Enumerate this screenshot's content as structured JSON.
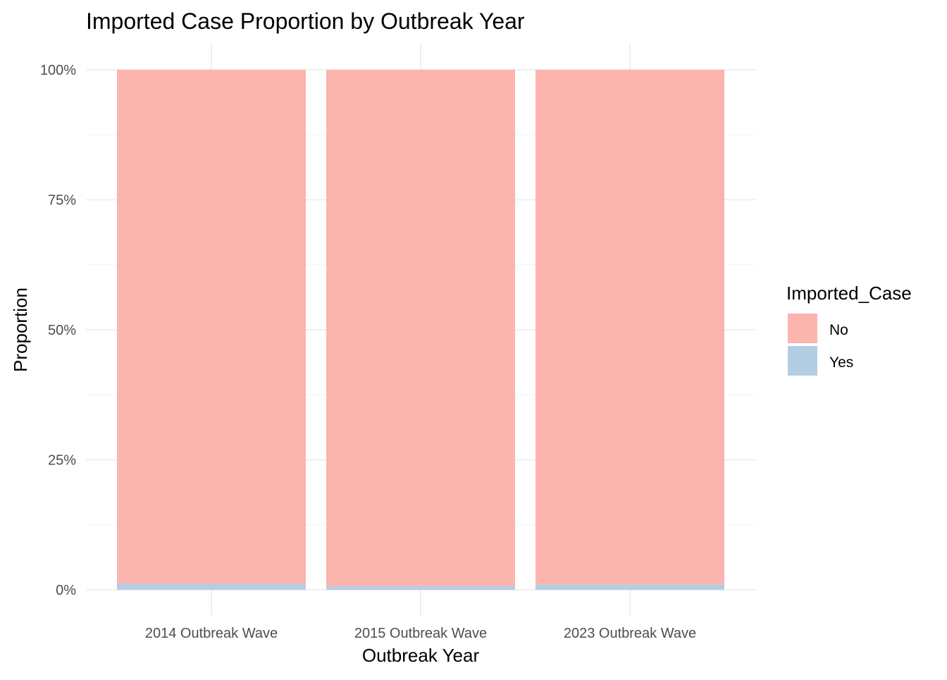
{
  "chart_data": {
    "type": "bar",
    "stacked": "fill",
    "title": "Imported Case Proportion by Outbreak Year",
    "xlabel": "Outbreak Year",
    "ylabel": "Proportion",
    "categories": [
      "2014 Outbreak Wave",
      "2015 Outbreak Wave",
      "2023 Outbreak Wave"
    ],
    "series": [
      {
        "name": "No",
        "values": [
          0.988,
          0.993,
          0.99
        ],
        "color": "#FBB4AE"
      },
      {
        "name": "Yes",
        "values": [
          0.012,
          0.007,
          0.01
        ],
        "color": "#B3CDE3"
      }
    ],
    "ylim": [
      0,
      1
    ],
    "yticks": [
      0,
      0.25,
      0.5,
      0.75,
      1
    ],
    "ytick_labels": [
      "0%",
      "25%",
      "50%",
      "75%",
      "100%"
    ],
    "legend": {
      "title": "Imported_Case",
      "position": "right"
    },
    "grid": true
  }
}
